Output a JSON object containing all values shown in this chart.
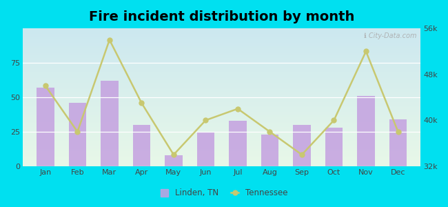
{
  "title": "Fire incident distribution by month",
  "months": [
    "Jan",
    "Feb",
    "Mar",
    "Apr",
    "May",
    "Jun",
    "Jul",
    "Aug",
    "Sep",
    "Oct",
    "Nov",
    "Dec"
  ],
  "linden_bars": [
    57,
    46,
    62,
    30,
    8,
    25,
    33,
    23,
    30,
    28,
    51,
    34
  ],
  "tennessee_line": [
    46000,
    38000,
    54000,
    43000,
    34000,
    40000,
    42000,
    38000,
    34000,
    40000,
    52000,
    38000
  ],
  "bar_color": "#c4a0e0",
  "line_color": "#c8c870",
  "line_marker": "o",
  "ylim_left": [
    0,
    100
  ],
  "ylim_right": [
    32000,
    56000
  ],
  "yticks_left": [
    0,
    25,
    50,
    75
  ],
  "ytick_labels_left": [
    "0",
    "25",
    "50",
    "75"
  ],
  "yticks_right": [
    32000,
    40000,
    48000,
    56000
  ],
  "ytick_labels_right": [
    "32k",
    "40k",
    "48k",
    "56k"
  ],
  "bg_outer": "#00e0f0",
  "bg_inner_colors": [
    "#cceedd",
    "#e8f5e0"
  ],
  "watermark": "ℹ City-Data.com",
  "legend_linden": "Linden, TN",
  "legend_tennessee": "Tennessee",
  "title_fontsize": 14
}
